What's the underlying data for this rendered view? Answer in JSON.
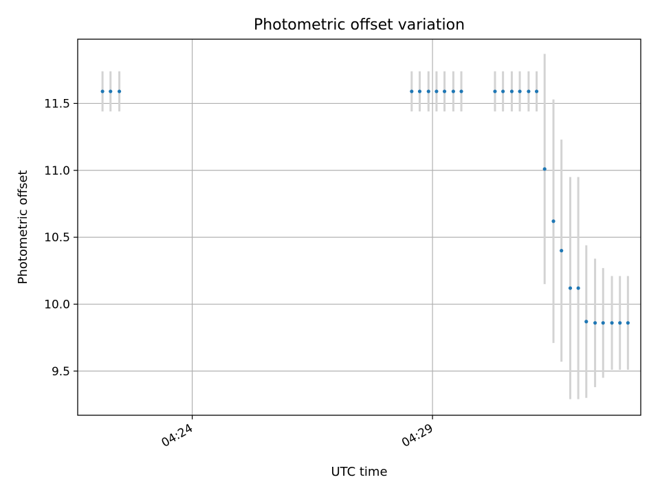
{
  "chart_data": {
    "type": "scatter",
    "title": "Photometric offset variation",
    "xlabel": "UTC time",
    "ylabel": "Photometric offset",
    "x_unit": "minutes",
    "xlim": [
      "04:21:37",
      "04:33:20"
    ],
    "ylim": [
      9.17,
      11.98
    ],
    "grid": true,
    "xticks": [
      {
        "label": "04:24",
        "value": "04:24:00"
      },
      {
        "label": "04:29",
        "value": "04:29:00"
      }
    ],
    "yticks": [
      {
        "label": "9.5",
        "value": 9.5
      },
      {
        "label": "10.0",
        "value": 10.0
      },
      {
        "label": "10.5",
        "value": 10.5
      },
      {
        "label": "11.0",
        "value": 11.0
      },
      {
        "label": "11.5",
        "value": 11.5
      }
    ],
    "series": [
      {
        "marker_color": "#1f77b4",
        "errorbar_color": "#d3d3d3",
        "points": [
          {
            "t": "04:22:08",
            "y": 11.59,
            "err": 0.15
          },
          {
            "t": "04:22:18",
            "y": 11.59,
            "err": 0.15
          },
          {
            "t": "04:22:29",
            "y": 11.59,
            "err": 0.15
          },
          {
            "t": "04:28:34",
            "y": 11.59,
            "err": 0.15
          },
          {
            "t": "04:28:44",
            "y": 11.59,
            "err": 0.15
          },
          {
            "t": "04:28:55",
            "y": 11.59,
            "err": 0.15
          },
          {
            "t": "04:29:05",
            "y": 11.59,
            "err": 0.15
          },
          {
            "t": "04:29:15",
            "y": 11.59,
            "err": 0.15
          },
          {
            "t": "04:29:26",
            "y": 11.59,
            "err": 0.15
          },
          {
            "t": "04:29:36",
            "y": 11.59,
            "err": 0.15
          },
          {
            "t": "04:30:18",
            "y": 11.59,
            "err": 0.15
          },
          {
            "t": "04:30:28",
            "y": 11.59,
            "err": 0.15
          },
          {
            "t": "04:30:39",
            "y": 11.59,
            "err": 0.15
          },
          {
            "t": "04:30:49",
            "y": 11.59,
            "err": 0.15
          },
          {
            "t": "04:31:00",
            "y": 11.59,
            "err": 0.15
          },
          {
            "t": "04:31:10",
            "y": 11.59,
            "err": 0.15
          },
          {
            "t": "04:31:20",
            "y": 11.01,
            "err": 0.86
          },
          {
            "t": "04:31:31",
            "y": 10.62,
            "err": 0.91
          },
          {
            "t": "04:31:41",
            "y": 10.4,
            "err": 0.83
          },
          {
            "t": "04:31:52",
            "y": 10.12,
            "err": 0.83
          },
          {
            "t": "04:32:02",
            "y": 10.12,
            "err": 0.83
          },
          {
            "t": "04:32:12",
            "y": 9.87,
            "err": 0.57
          },
          {
            "t": "04:32:23",
            "y": 9.86,
            "err": 0.48
          },
          {
            "t": "04:32:33",
            "y": 9.86,
            "err": 0.41
          },
          {
            "t": "04:32:44",
            "y": 9.86,
            "err": 0.35
          },
          {
            "t": "04:32:54",
            "y": 9.86,
            "err": 0.35
          },
          {
            "t": "04:33:04",
            "y": 9.86,
            "err": 0.35
          }
        ]
      }
    ]
  }
}
